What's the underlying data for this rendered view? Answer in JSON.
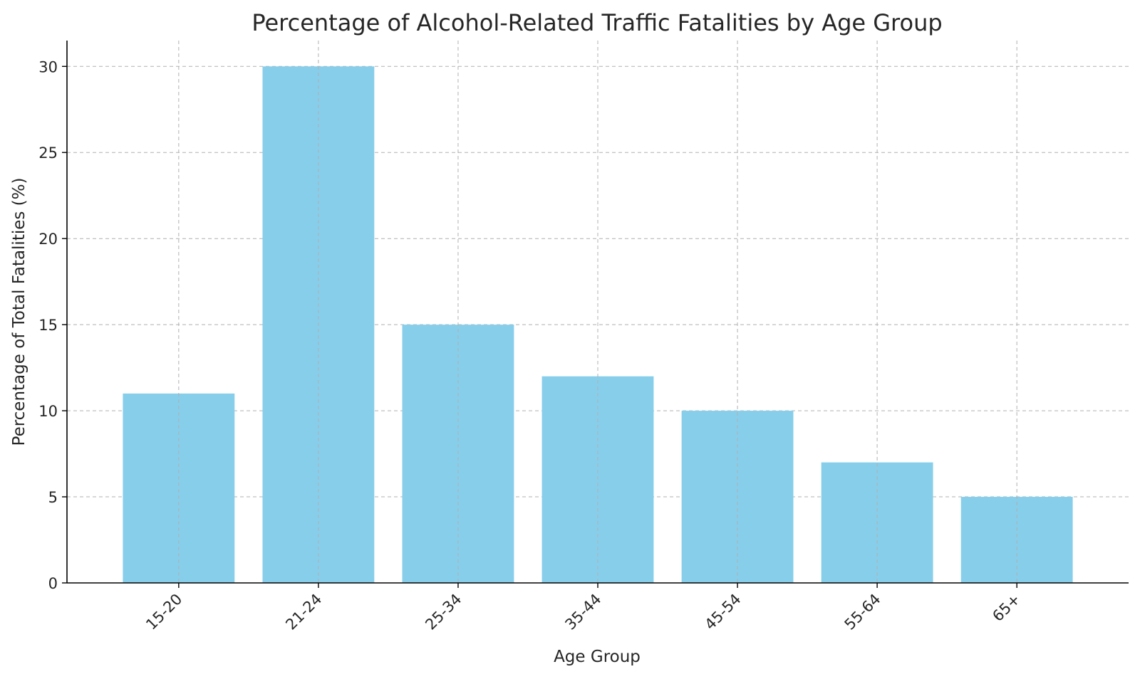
{
  "chart_data": {
    "type": "bar",
    "title": "Percentage of Alcohol-Related Traffic Fatalities by Age Group",
    "xlabel": "Age Group",
    "ylabel": "Percentage of Total Fatalities (%)",
    "categories": [
      "15-20",
      "21-24",
      "25-34",
      "35-44",
      "45-54",
      "55-64",
      "65+"
    ],
    "values": [
      11,
      30,
      15,
      12,
      10,
      7,
      5
    ],
    "ylim": [
      0,
      31.5
    ],
    "yticks": [
      0,
      5,
      10,
      15,
      20,
      25,
      30
    ],
    "grid": true,
    "bar_color": "#87ceeb"
  }
}
